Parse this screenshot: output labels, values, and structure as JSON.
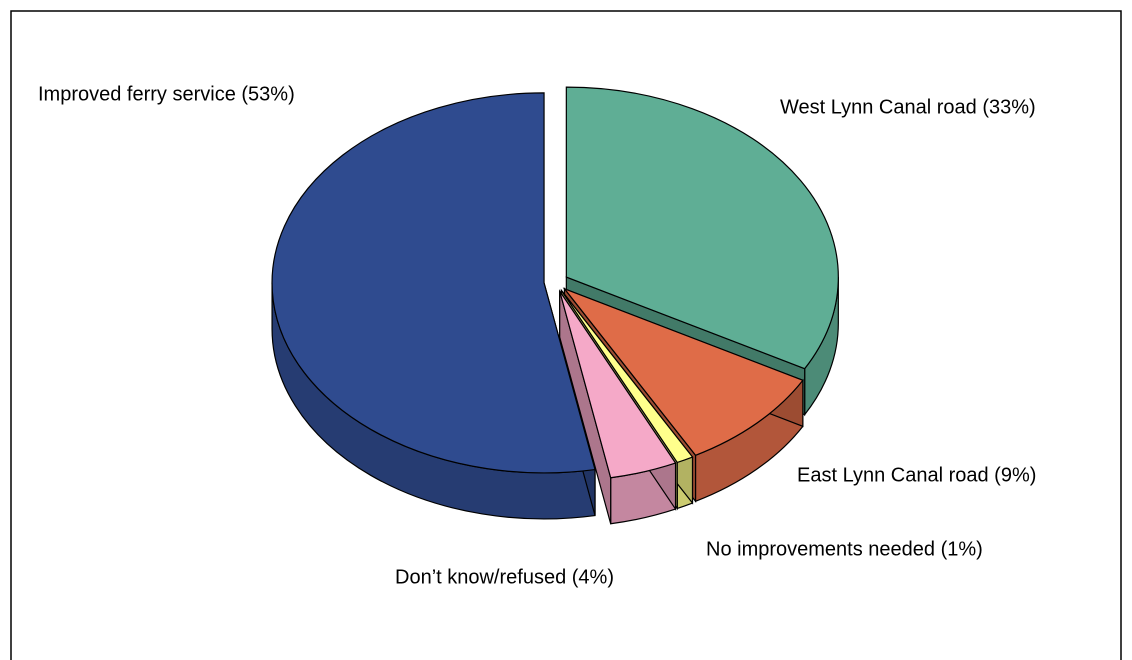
{
  "chart_data": {
    "type": "pie",
    "categories": [
      "West Lynn Canal road (33%)",
      "East Lynn Canal road (9%)",
      "No improvements needed (1%)",
      "Don’t know/refused (4%)",
      "Improved ferry service (53%)"
    ],
    "values": [
      33,
      9,
      1,
      4,
      53
    ],
    "colors": [
      "#5fae95",
      "#df6c48",
      "#ffff8c",
      "#f5a9c8",
      "#2f4b8f"
    ]
  }
}
